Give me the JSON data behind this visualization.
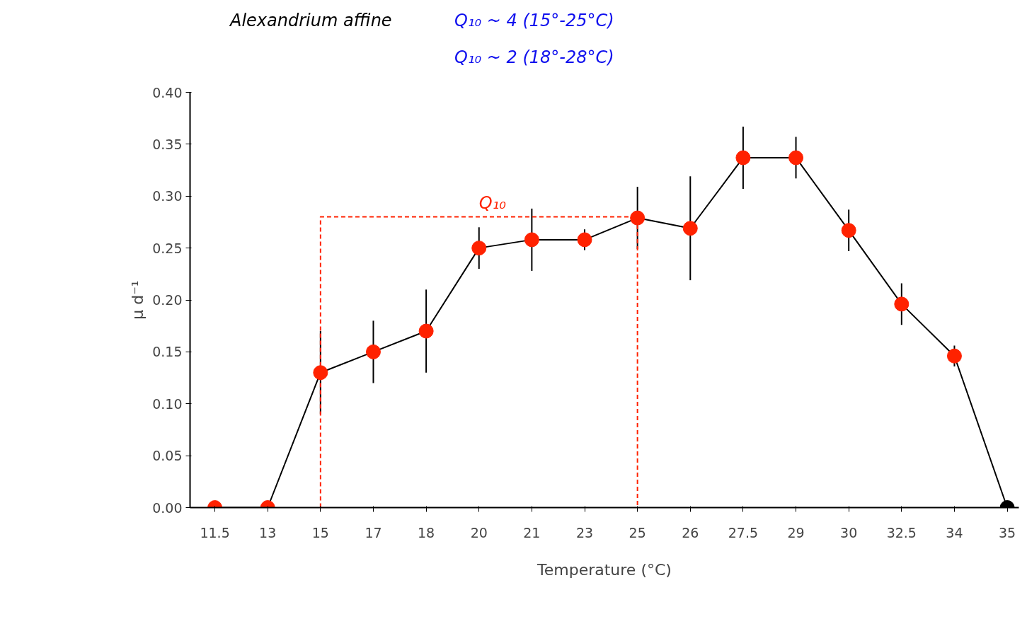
{
  "chart_data": {
    "type": "line",
    "xlabel": "Temperature (°C)",
    "ylabel": "μ d⁻¹",
    "categories": [
      "11.5",
      "13",
      "15",
      "17",
      "18",
      "20",
      "21",
      "23",
      "25",
      "26",
      "27.5",
      "29",
      "30",
      "32.5",
      "34",
      "35"
    ],
    "ylim": [
      0,
      0.4
    ],
    "yticks": [
      {
        "value": 0,
        "label": "0.00"
      },
      {
        "value": 0.05,
        "label": "0.05"
      },
      {
        "value": 0.1,
        "label": "0.10"
      },
      {
        "value": 0.15,
        "label": "0.15"
      },
      {
        "value": 0.2,
        "label": "0.20"
      },
      {
        "value": 0.25,
        "label": "0.25"
      },
      {
        "value": 0.3,
        "label": "0.30"
      },
      {
        "value": 0.35,
        "label": "0.35"
      },
      {
        "value": 0.4,
        "label": "0.40"
      }
    ],
    "grid": false,
    "marker": "circle",
    "series": [
      {
        "type": "line",
        "color": "#000000",
        "line_style": "solid",
        "colors": [
          "#ff2200",
          "#ff2200",
          "#ff2200",
          "#ff2200",
          "#ff2200",
          "#ff2200",
          "#ff2200",
          "#ff2200",
          "#ff2200",
          "#ff2200",
          "#ff2200",
          "#ff2200",
          "#ff2200",
          "#ff2200",
          "#ff2200",
          "#000000"
        ],
        "values": [
          0,
          0,
          0.13,
          0.15,
          0.17,
          0.25,
          0.258,
          0.258,
          0.279,
          0.269,
          0.337,
          0.337,
          0.267,
          0.196,
          0.146,
          0
        ],
        "errors": [
          null,
          null,
          0.04,
          0.03,
          0.04,
          0.02,
          0.03,
          0.01,
          0.03,
          0.05,
          0.03,
          0.02,
          0.02,
          0.02,
          0.01,
          null
        ]
      },
      {
        "type": "line",
        "color": "#ff2200",
        "line_style": "dashed",
        "marker": "none",
        "x": [
          "15",
          "15",
          "25",
          "25"
        ],
        "values": [
          0,
          0.28,
          0.28,
          0
        ]
      }
    ],
    "annotations": [
      "Alexandrium affine",
      "Q₁₀ ~ 4 (15°-25°C)",
      "Q₁₀ ~ 2 (18°-28°C)",
      "Q₁₀"
    ]
  }
}
